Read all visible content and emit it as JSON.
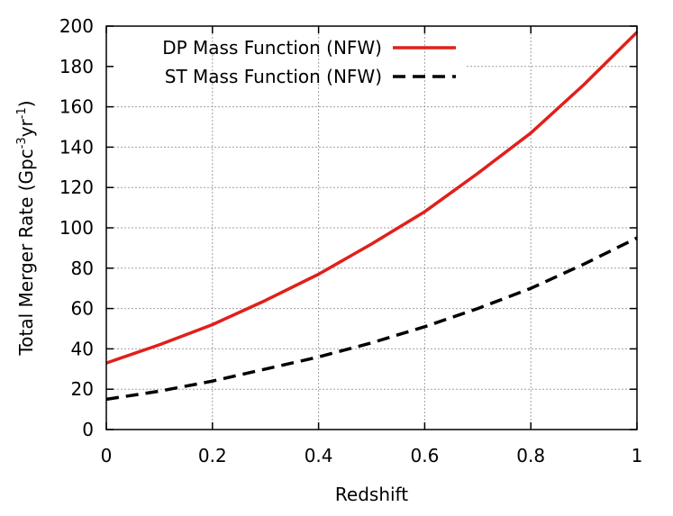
{
  "chart_data": {
    "type": "line",
    "title": "",
    "xlabel": "Redshift",
    "ylabel_main": "Total Merger Rate (Gpc",
    "ylabel_exp1": "-3",
    "ylabel_mid": "yr",
    "ylabel_exp2": "-1",
    "ylabel_end": ")",
    "xlim": [
      0,
      1
    ],
    "ylim": [
      0,
      200
    ],
    "xticks": [
      0,
      0.2,
      0.4,
      0.6,
      0.8,
      1
    ],
    "xtick_labels": [
      "0",
      "0.2",
      "0.4",
      "0.6",
      "0.8",
      "1"
    ],
    "yticks": [
      0,
      20,
      40,
      60,
      80,
      100,
      120,
      140,
      160,
      180,
      200
    ],
    "ytick_labels": [
      "0",
      "20",
      "40",
      "60",
      "80",
      "100",
      "120",
      "140",
      "160",
      "180",
      "200"
    ],
    "grid": true,
    "legend_position": "top-left",
    "series": [
      {
        "name": "DP Mass Function (NFW)",
        "color": "#e0201b",
        "style": "solid",
        "x": [
          0,
          0.1,
          0.2,
          0.3,
          0.4,
          0.5,
          0.6,
          0.7,
          0.8,
          0.9,
          1.0
        ],
        "y": [
          33,
          42,
          52,
          64,
          77,
          92,
          108,
          127,
          147,
          171,
          197
        ]
      },
      {
        "name": "ST Mass Function (NFW)",
        "color": "#000000",
        "style": "dashed",
        "x": [
          0,
          0.1,
          0.2,
          0.3,
          0.4,
          0.5,
          0.6,
          0.7,
          0.8,
          0.9,
          1.0
        ],
        "y": [
          15,
          19,
          24,
          30,
          36,
          43,
          51,
          60,
          70,
          82,
          95
        ]
      }
    ]
  }
}
